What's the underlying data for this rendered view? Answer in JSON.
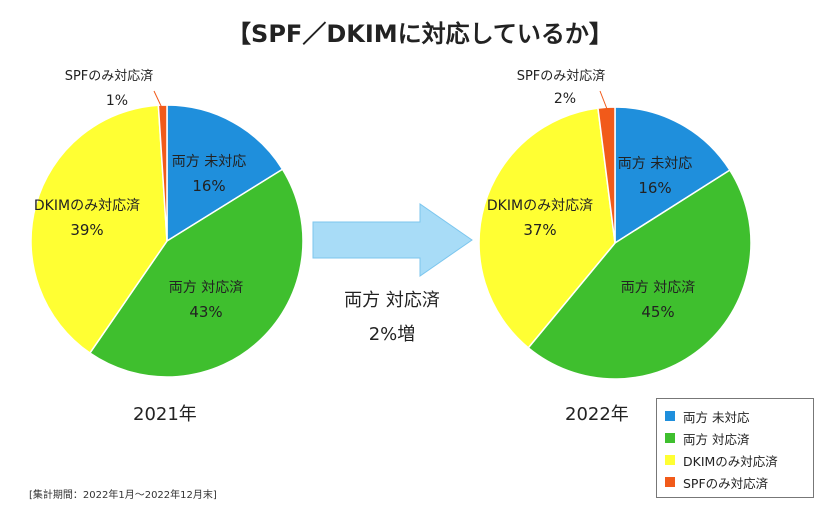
{
  "title": "【SPF／DKIMに対応しているか】",
  "chart_data": {
    "type": "pie",
    "categories": [
      "両方 未対応",
      "両方 対応済",
      "DKIMのみ対応済",
      "SPFのみ対応済"
    ],
    "colors": [
      "#1f8fdc",
      "#3fbf2e",
      "#ffff33",
      "#f15a1a"
    ],
    "charts": [
      {
        "name": "2021年",
        "values": [
          16,
          43,
          39,
          1
        ],
        "labels": [
          "16%",
          "43%",
          "39%",
          "1%"
        ]
      },
      {
        "name": "2022年",
        "values": [
          16,
          45,
          37,
          2
        ],
        "labels": [
          "16%",
          "45%",
          "37%",
          "2%"
        ]
      }
    ],
    "legend": [
      "両方 未対応",
      "両方 対応済",
      "DKIMのみ対応済",
      "SPFのみ対応済"
    ],
    "annotation": [
      "両方 対応済",
      "2%増"
    ]
  },
  "footnote": "[集計期間：2022年1月〜2022年12月末]"
}
